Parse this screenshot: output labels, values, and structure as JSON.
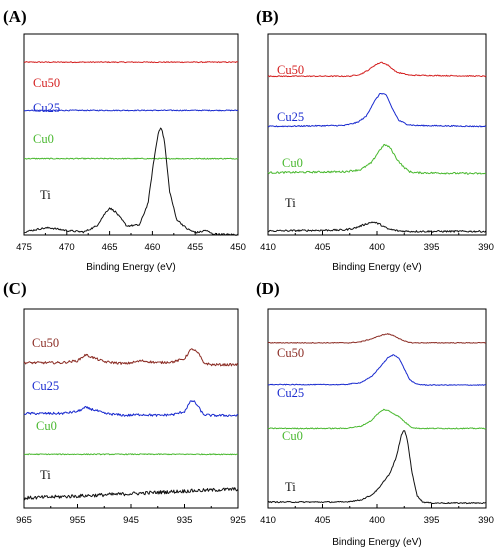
{
  "chart_data": [
    {
      "panel": "(A)",
      "type": "line",
      "xlabel": "Binding Energy (eV)",
      "ylabel": "",
      "xlim": [
        475,
        450
      ],
      "xticks": [
        475,
        470,
        465,
        460,
        455,
        450
      ],
      "x_reversed": true,
      "ylim": [
        0,
        100
      ],
      "series": [
        {
          "name": "Cu50",
          "color": "#d42020",
          "x": [
            475,
            450
          ],
          "y": [
            86,
            86
          ],
          "noise": 0.25
        },
        {
          "name": "Cu25",
          "color": "#1a2bcf",
          "x": [
            475,
            450
          ],
          "y": [
            62,
            62
          ],
          "noise": 0.25
        },
        {
          "name": "Cu0",
          "color": "#49b82f",
          "x": [
            475,
            450
          ],
          "y": [
            38,
            38
          ],
          "noise": 0.25
        },
        {
          "name": "Ti",
          "color": "#111111",
          "x": [
            475,
            473,
            472,
            470,
            468,
            466.5,
            465.5,
            465,
            464.3,
            463,
            461.5,
            460.5,
            459.8,
            459.3,
            459,
            458.6,
            458,
            457.2,
            456,
            455,
            454.3,
            453.8,
            453,
            452,
            450
          ],
          "y": [
            1.5,
            3.2,
            3.6,
            2.2,
            1.5,
            4.5,
            11,
            13.5,
            11.5,
            4.5,
            5,
            16,
            38,
            51,
            54,
            47,
            22,
            8,
            3.2,
            1.2,
            1.6,
            2.4,
            0.6,
            0.3,
            0.2
          ],
          "noise": 0.45
        }
      ]
    },
    {
      "panel": "(B)",
      "type": "line",
      "xlabel": "Binding Energy (eV)",
      "ylabel": "",
      "xlim": [
        410,
        390
      ],
      "xticks": [
        410,
        405,
        400,
        395,
        390
      ],
      "x_reversed": true,
      "ylim": [
        0,
        100
      ],
      "series": [
        {
          "name": "Cu50",
          "color": "#d42020",
          "x": [
            410,
            402.5,
            401.5,
            400.8,
            400.2,
            399.6,
            399.0,
            398.2,
            397.0,
            390
          ],
          "y": [
            79,
            79,
            80,
            82,
            84.5,
            86,
            84.5,
            81,
            79.5,
            79
          ],
          "noise": 0.25
        },
        {
          "name": "Cu25",
          "color": "#1a2bcf",
          "x": [
            410,
            403,
            401.8,
            401,
            400.3,
            399.7,
            399.2,
            398.6,
            398,
            397.2,
            396.5,
            390
          ],
          "y": [
            54,
            54.5,
            56,
            59,
            66,
            70.5,
            70,
            63,
            57,
            55,
            54.5,
            54
          ],
          "noise": 0.3
        },
        {
          "name": "Cu0",
          "color": "#49b82f",
          "x": [
            410,
            403,
            401.5,
            400.5,
            399.8,
            399.3,
            398.8,
            398.2,
            397.6,
            397.0,
            396.5,
            390
          ],
          "y": [
            31,
            31.5,
            32.5,
            36,
            42,
            45,
            43.5,
            38,
            34,
            31.5,
            31,
            30.5
          ],
          "noise": 0.45
        },
        {
          "name": "Ti",
          "color": "#111111",
          "x": [
            410,
            403,
            402,
            401,
            400.4,
            399.8,
            399,
            398,
            397,
            390
          ],
          "y": [
            2,
            2.5,
            3.5,
            5.5,
            6.5,
            5.5,
            3,
            2,
            1.8,
            1.8
          ],
          "noise": 0.45
        }
      ]
    },
    {
      "panel": "(C)",
      "type": "line",
      "xlabel": "",
      "ylabel": "",
      "xlim": [
        965,
        925
      ],
      "xticks": [
        965,
        955,
        945,
        935,
        925
      ],
      "x_reversed": true,
      "ylim": [
        0,
        100
      ],
      "series": [
        {
          "name": "Cu50",
          "color": "#8b2c24",
          "x": [
            965,
            958,
            955,
            953.5,
            952,
            950,
            946,
            943,
            940,
            937,
            935,
            934,
            933.5,
            933,
            932.2,
            931.5,
            930,
            925
          ],
          "y": [
            73,
            73,
            74,
            77,
            75.5,
            73.5,
            72.5,
            74,
            73,
            73.5,
            75,
            79,
            80,
            79,
            77,
            73,
            72,
            72
          ],
          "noise": 0.6
        },
        {
          "name": "Cu25",
          "color": "#1a2bcf",
          "x": [
            965,
            958,
            955,
            953.5,
            951.5,
            950,
            946,
            943,
            940,
            937,
            935,
            934,
            933.5,
            933,
            932.2,
            931.5,
            930,
            925
          ],
          "y": [
            47.5,
            47.5,
            48.5,
            50.5,
            49,
            47.5,
            46.5,
            47,
            46.5,
            47,
            48.5,
            53,
            54,
            53,
            50,
            47,
            46.5,
            46.5
          ],
          "noise": 0.6
        },
        {
          "name": "Cu0",
          "color": "#49b82f",
          "x": [
            965,
            925
          ],
          "y": [
            27,
            27
          ],
          "noise": 0.25
        },
        {
          "name": "Ti",
          "color": "#111111",
          "x": [
            965,
            955,
            945,
            935,
            925
          ],
          "y": [
            5,
            6,
            7.2,
            8.5,
            9.5
          ],
          "noise": 0.9
        }
      ]
    },
    {
      "panel": "(D)",
      "type": "line",
      "xlabel": "Binding Energy (eV)",
      "ylabel": "",
      "xlim": [
        410,
        390
      ],
      "xticks": [
        410,
        405,
        400,
        395,
        390
      ],
      "x_reversed": true,
      "ylim": [
        0,
        100
      ],
      "series": [
        {
          "name": "Cu50",
          "color": "#8b2c24",
          "x": [
            410,
            402.5,
            401.5,
            400.5,
            399.5,
            399.0,
            398.4,
            397.6,
            396.8,
            390
          ],
          "y": [
            83,
            83,
            83.5,
            85,
            87,
            87.5,
            86.5,
            84,
            83,
            83
          ],
          "noise": 0.2
        },
        {
          "name": "Cu25",
          "color": "#1a2bcf",
          "x": [
            410,
            403,
            401.5,
            400.5,
            399.7,
            399.0,
            398.5,
            398.0,
            397.5,
            397.0,
            396.5,
            396.0,
            395.5,
            395,
            390
          ],
          "y": [
            62,
            62,
            63,
            66,
            71,
            75.5,
            77,
            75.5,
            70,
            64.5,
            62.5,
            62,
            61.8,
            61.8,
            61.8
          ],
          "noise": 0.2
        },
        {
          "name": "Cu0",
          "color": "#49b82f",
          "x": [
            410,
            403,
            401.5,
            400.5,
            400.0,
            399.4,
            399.0,
            398.5,
            398.0,
            397.4,
            396.8,
            396.2,
            395.5,
            390
          ],
          "y": [
            40,
            40,
            41,
            44,
            47,
            49.5,
            49,
            47.5,
            46,
            43,
            40.5,
            40,
            40,
            40
          ],
          "noise": 0.25
        },
        {
          "name": "Ti",
          "color": "#111111",
          "x": [
            410,
            403,
            401.5,
            400.5,
            399.8,
            399.3,
            398.8,
            398.2,
            397.8,
            397.5,
            397.2,
            396.8,
            396.3,
            395.8,
            395,
            390
          ],
          "y": [
            3,
            3,
            4,
            6.5,
            10,
            14,
            17.5,
            26,
            36,
            39.5,
            34,
            18,
            6,
            3,
            2.5,
            2.5
          ],
          "noise": 0.3
        }
      ]
    }
  ]
}
